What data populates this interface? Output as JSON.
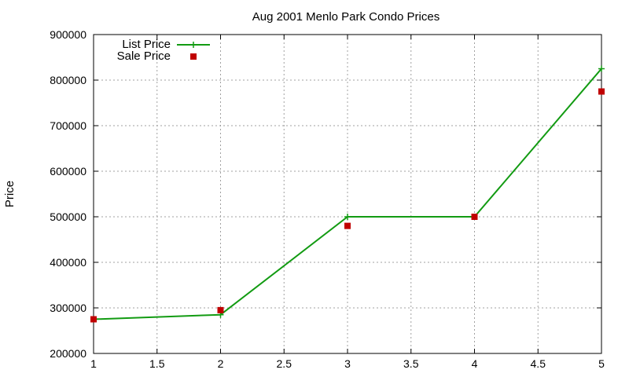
{
  "chart_data": {
    "type": "line",
    "title": "Aug 2001 Menlo Park Condo Prices",
    "xlabel": "",
    "ylabel": "Price",
    "xlim": [
      1,
      5
    ],
    "ylim": [
      200000,
      900000
    ],
    "x_ticks": [
      "1",
      "1.5",
      "2",
      "2.5",
      "3",
      "3.5",
      "4",
      "4.5",
      "5"
    ],
    "y_ticks": [
      "200000",
      "300000",
      "400000",
      "500000",
      "600000",
      "700000",
      "800000",
      "900000"
    ],
    "grid": true,
    "legend_position": "top-left",
    "series": [
      {
        "name": "List Price",
        "style": "line-with-plus-markers",
        "color": "#129b12",
        "x": [
          1,
          2,
          3,
          4,
          5
        ],
        "y": [
          275000,
          285000,
          500000,
          500000,
          825000
        ]
      },
      {
        "name": "Sale Price",
        "style": "square-markers",
        "color": "#c00000",
        "x": [
          1,
          2,
          3,
          4,
          5
        ],
        "y": [
          275000,
          295000,
          480000,
          500000,
          775000
        ]
      }
    ]
  }
}
